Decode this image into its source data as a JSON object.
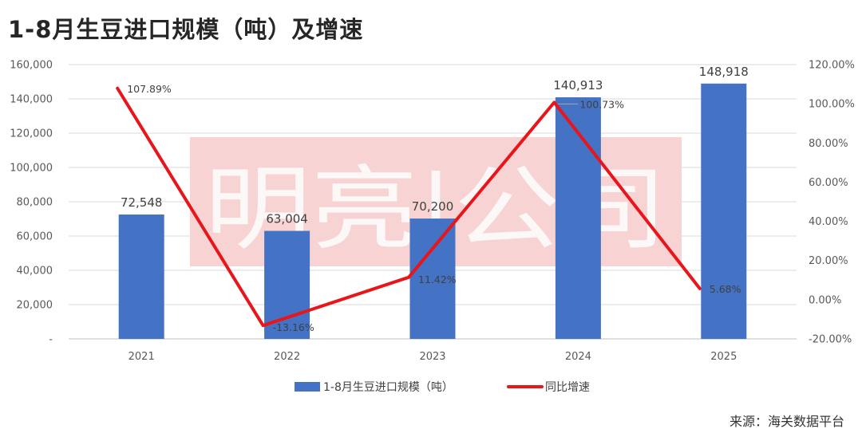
{
  "title": "1-8月生豆进口规模（吨）及增速",
  "source": "来源：海关数据平台",
  "watermark": "明亮|公司",
  "colors": {
    "bar": "#4472c4",
    "line": "#e8151b",
    "watermark_bg": "#f7d3d4",
    "grid": "#d9d9d9"
  },
  "chart_data": {
    "type": "bar",
    "categories": [
      "2021",
      "2022",
      "2023",
      "2024",
      "2025"
    ],
    "series": [
      {
        "name": "1-8月生豆进口规模（吨）",
        "type": "bar",
        "axis": "left",
        "values": [
          72548,
          63004,
          70200,
          140913,
          148918
        ],
        "labels": [
          "72,548",
          "63,004",
          "70,200",
          "140,913",
          "148,918"
        ]
      },
      {
        "name": "同比增速",
        "type": "line",
        "axis": "right",
        "values": [
          107.89,
          -13.16,
          11.42,
          100.73,
          5.68
        ],
        "labels": [
          "107.89%",
          "-13.16%",
          "11.42%",
          "100.73%",
          "5.68%"
        ]
      }
    ],
    "y_left": {
      "ylim": [
        0,
        160000
      ],
      "step": 20000,
      "ticks": [
        "-",
        "20,000",
        "40,000",
        "60,000",
        "80,000",
        "100,000",
        "120,000",
        "140,000",
        "160,000"
      ]
    },
    "y_right": {
      "ylim": [
        -20,
        120
      ],
      "step": 20,
      "ticks": [
        "-20.00%",
        "0.00%",
        "20.00%",
        "40.00%",
        "60.00%",
        "80.00%",
        "100.00%",
        "120.00%"
      ]
    },
    "grid": true,
    "legend_position": "bottom"
  }
}
